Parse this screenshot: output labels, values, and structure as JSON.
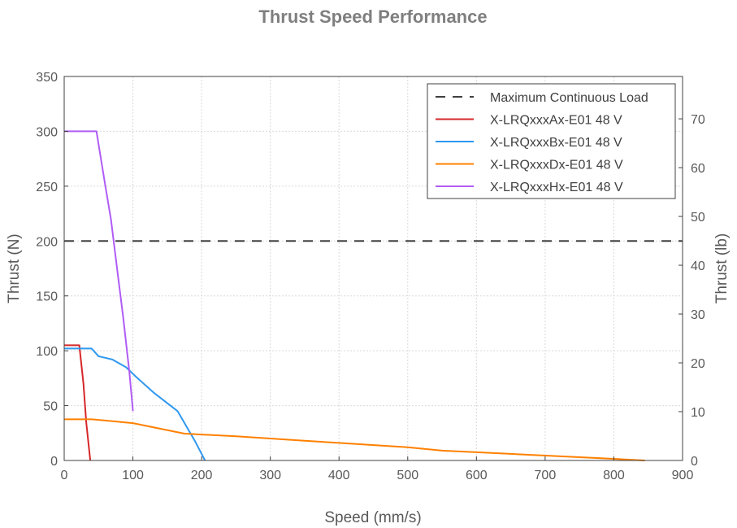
{
  "chart_data": {
    "type": "line",
    "title": "Thrust Speed Performance",
    "xlabel": "Speed (mm/s)",
    "ylabel": "Thrust (N)",
    "y2label": "Thrust (lb)",
    "xlim": [
      0,
      900
    ],
    "ylim": [
      0,
      350
    ],
    "y2lim": [
      0,
      78.68
    ],
    "xticks": [
      0,
      100,
      200,
      300,
      400,
      500,
      600,
      700,
      800,
      900
    ],
    "yticks": [
      0,
      50,
      100,
      150,
      200,
      250,
      300,
      350
    ],
    "y2ticks": [
      0,
      10,
      20,
      30,
      40,
      50,
      60,
      70
    ],
    "grid": true,
    "legend_position": "top-right",
    "reference_line": {
      "name": "Maximum Continuous Load",
      "y": 200,
      "color": "#404040",
      "style": "dashed"
    },
    "series": [
      {
        "name": "X-LRQxxxAx-E01 48 V",
        "color": "#d62728",
        "x": [
          0,
          22,
          28,
          32,
          38
        ],
        "y": [
          105,
          105,
          70,
          35,
          0
        ]
      },
      {
        "name": "X-LRQxxxBx-E01 48 V",
        "color": "#2f98f0",
        "x": [
          0,
          40,
          50,
          70,
          90,
          105,
          130,
          165,
          190,
          205
        ],
        "y": [
          102,
          102,
          95,
          92,
          85,
          76,
          62,
          45,
          18,
          0
        ]
      },
      {
        "name": "X-LRQxxxDx-E01 48 V",
        "color": "#ff8000",
        "x": [
          0,
          40,
          50,
          100,
          175,
          250,
          350,
          500,
          550,
          650,
          800,
          845
        ],
        "y": [
          37.5,
          37.5,
          37,
          34,
          24.5,
          22,
          18,
          12,
          9,
          6,
          1.5,
          0
        ]
      },
      {
        "name": "X-LRQxxxHx-E01 48 V",
        "color": "#b05cf5",
        "x": [
          0,
          47,
          60,
          68,
          80,
          86,
          95,
          100
        ],
        "y": [
          300,
          300,
          250,
          220,
          160,
          130,
          80,
          45
        ]
      }
    ]
  }
}
